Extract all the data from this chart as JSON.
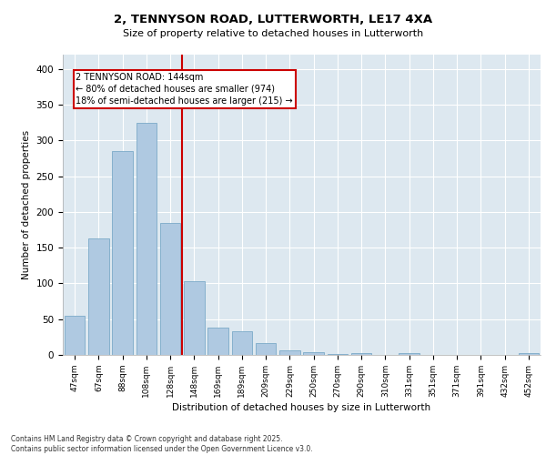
{
  "title_line1": "2, TENNYSON ROAD, LUTTERWORTH, LE17 4XA",
  "title_line2": "Size of property relative to detached houses in Lutterworth",
  "xlabel": "Distribution of detached houses by size in Lutterworth",
  "ylabel": "Number of detached properties",
  "categories": [
    "47sqm",
    "67sqm",
    "88sqm",
    "108sqm",
    "128sqm",
    "148sqm",
    "169sqm",
    "189sqm",
    "209sqm",
    "229sqm",
    "250sqm",
    "270sqm",
    "290sqm",
    "310sqm",
    "331sqm",
    "351sqm",
    "371sqm",
    "391sqm",
    "432sqm",
    "452sqm"
  ],
  "values": [
    55,
    163,
    285,
    325,
    185,
    103,
    38,
    33,
    16,
    7,
    4,
    1,
    3,
    0,
    2,
    0,
    0,
    0,
    0,
    2
  ],
  "bar_color": "#afc9e1",
  "bar_edge_color": "#7baac8",
  "vline_color": "#cc0000",
  "annotation_text": "2 TENNYSON ROAD: 144sqm\n← 80% of detached houses are smaller (974)\n18% of semi-detached houses are larger (215) →",
  "ylim": [
    0,
    420
  ],
  "yticks": [
    0,
    50,
    100,
    150,
    200,
    250,
    300,
    350,
    400
  ],
  "background_color": "#dde8f0",
  "grid_color": "#ffffff",
  "footer_text": "Contains HM Land Registry data © Crown copyright and database right 2025.\nContains public sector information licensed under the Open Government Licence v3.0.",
  "figsize": [
    6.0,
    5.0
  ],
  "dpi": 100
}
